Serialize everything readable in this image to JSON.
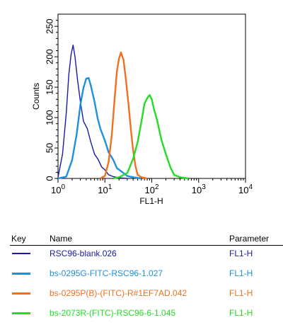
{
  "chart_data": {
    "type": "line",
    "xlabel": "FL1-H",
    "ylabel": "Counts",
    "x_scale": "log",
    "xlim": [
      1,
      10000
    ],
    "ylim": [
      0,
      270
    ],
    "x_ticks": [
      {
        "value": 1,
        "base": "10",
        "exp": "0"
      },
      {
        "value": 10,
        "base": "10",
        "exp": "1"
      },
      {
        "value": 100,
        "base": "10",
        "exp": "2"
      },
      {
        "value": 1000,
        "base": "10",
        "exp": "3"
      },
      {
        "value": 10000,
        "base": "10",
        "exp": "4"
      }
    ],
    "y_ticks": [
      "0",
      "50",
      "100",
      "150",
      "200",
      "250"
    ],
    "grid": false,
    "series": [
      {
        "name": "RSC96-blank.026",
        "parameter": "FL1-H",
        "color": "#1a1aa6",
        "x": [
          1,
          1.25,
          1.5,
          1.7,
          1.9,
          2.1,
          2.3,
          2.6,
          3,
          3.5,
          4.2,
          5,
          6,
          7.2,
          8.5,
          10,
          12,
          15,
          20,
          30
        ],
        "y": [
          2,
          40,
          110,
          170,
          205,
          217,
          200,
          165,
          125,
          95,
          80,
          60,
          42,
          30,
          20,
          12,
          6,
          3,
          1,
          0
        ]
      },
      {
        "name": "bs-0295G-FITC-RSC96-1.027",
        "parameter": "FL1-H",
        "color": "#1e90e0",
        "x": [
          1,
          1.5,
          2,
          2.5,
          3,
          3.5,
          4,
          4.5,
          5,
          6,
          7,
          8,
          10,
          12,
          15,
          18,
          22,
          30,
          40,
          60
        ],
        "y": [
          0,
          3,
          30,
          75,
          120,
          150,
          162,
          165,
          155,
          125,
          100,
          80,
          62,
          45,
          30,
          18,
          10,
          4,
          2,
          0
        ]
      },
      {
        "name": "bs-0295P(B)-(FITC)-R#1EF7AD.042",
        "parameter": "FL1-H",
        "color": "#f07020",
        "x": [
          8,
          10,
          12,
          14,
          16,
          18,
          20,
          22,
          25,
          28,
          32,
          36,
          40,
          45,
          50,
          60,
          80
        ],
        "y": [
          0,
          5,
          25,
          70,
          130,
          175,
          198,
          205,
          195,
          165,
          120,
          80,
          45,
          20,
          8,
          2,
          0
        ]
      },
      {
        "name": "bs-2073R-(FITC)-RSC96-6-1.045",
        "parameter": "FL1-H",
        "color": "#22dd22",
        "x": [
          15,
          20,
          30,
          40,
          50,
          60,
          70,
          80,
          90,
          100,
          110,
          130,
          160,
          200,
          250,
          300,
          400,
          600
        ],
        "y": [
          0,
          2,
          10,
          30,
          60,
          95,
          122,
          133,
          135,
          130,
          118,
          95,
          65,
          38,
          18,
          8,
          2,
          0
        ]
      }
    ]
  },
  "legend": {
    "header_key": "Key",
    "header_name": "Name",
    "header_param": "Parameter"
  }
}
